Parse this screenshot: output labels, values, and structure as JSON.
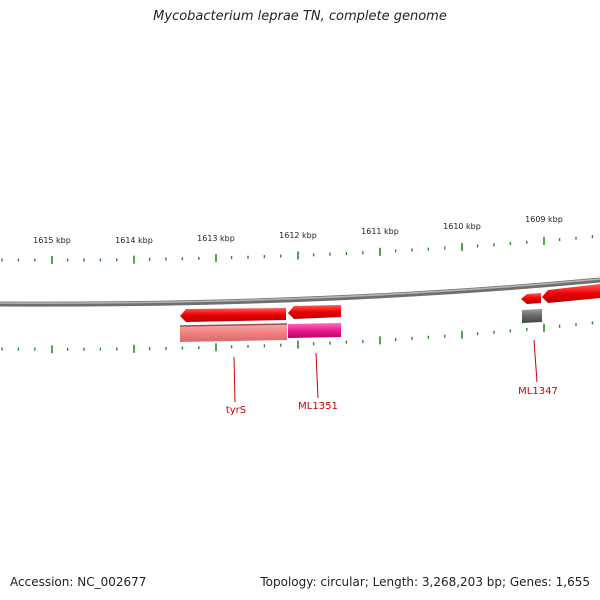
{
  "title": "Mycobacterium leprae TN, complete genome",
  "scale_labels": [
    "1615 kbp",
    "1614 kbp",
    "1613 kbp",
    "1612 kbp",
    "1611 kbp",
    "1610 kbp",
    "1609 kbp"
  ],
  "gene_labels": {
    "tyrS": "tyrS",
    "ML1351": "ML1351",
    "ML1347": "ML1347"
  },
  "footer": {
    "accession": "Accession: NC_002677",
    "summary": "Topology: circular; Length: 3,268,203 bp; Genes: 1,655"
  },
  "colors": {
    "backbone": "#7a7a7a",
    "ticks": "#2a8a2a",
    "gene_red": "#ee0000",
    "gene_pink": "#ec1c8c",
    "gene_salmon": "#f08080",
    "gene_gray": "#666666",
    "label_red": "#cc0000"
  }
}
